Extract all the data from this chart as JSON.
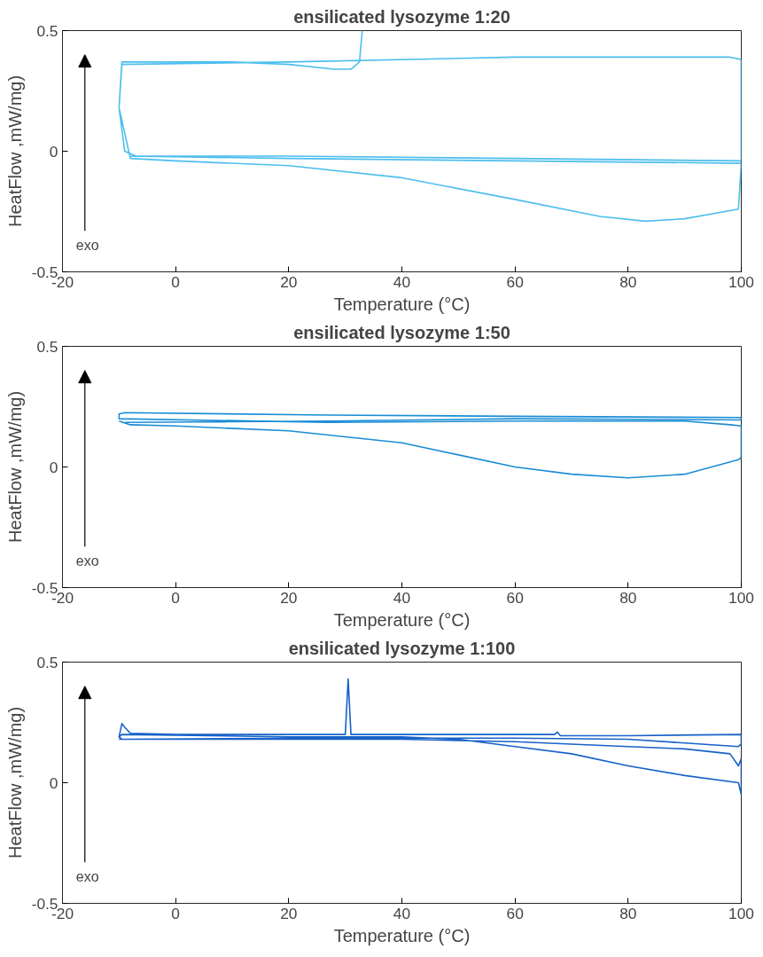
{
  "chart_data": [
    {
      "type": "line",
      "title": "ensilicated lysozyme 1:20",
      "xlabel": "Temperature (°C)",
      "ylabel": "HeatFlow ,mW/mg)",
      "xlim": [
        -20,
        100
      ],
      "ylim": [
        -0.5,
        0.5
      ],
      "xticks": [
        -20,
        0,
        20,
        40,
        60,
        80,
        100
      ],
      "yticks": [
        -0.5,
        0,
        0.5
      ],
      "grid": false,
      "annotations": [
        "exo"
      ],
      "series": [
        {
          "color": "#4dbeee",
          "x": [
            33,
            32.5,
            31,
            28,
            20,
            10,
            -9.5,
            -10,
            -9,
            -7,
            20,
            60,
            100,
            100,
            98,
            60,
            20,
            -9.5,
            -10,
            -8,
            0,
            20,
            40,
            60,
            75,
            83,
            90,
            99.5,
            100,
            60,
            20,
            -8
          ],
          "values": [
            0.5,
            0.37,
            0.34,
            0.34,
            0.36,
            0.37,
            0.37,
            0.18,
            0.0,
            -0.02,
            -0.02,
            -0.03,
            -0.04,
            0.38,
            0.39,
            0.39,
            0.37,
            0.36,
            0.18,
            -0.03,
            -0.04,
            -0.06,
            -0.11,
            -0.2,
            -0.27,
            -0.29,
            -0.28,
            -0.24,
            -0.05,
            -0.04,
            -0.03,
            -0.02
          ]
        }
      ]
    },
    {
      "type": "line",
      "title": "ensilicated lysozyme 1:50",
      "xlabel": "Temperature (°C)",
      "ylabel": "HeatFlow ,mW/mg)",
      "xlim": [
        -20,
        100
      ],
      "ylim": [
        -0.5,
        0.5
      ],
      "xticks": [
        -20,
        0,
        20,
        40,
        60,
        80,
        100
      ],
      "yticks": [
        -0.5,
        0,
        0.5
      ],
      "grid": false,
      "annotations": [
        "exo"
      ],
      "series": [
        {
          "color": "#1a8dd6",
          "x": [
            -10,
            -8,
            0,
            20,
            40,
            50,
            60,
            70,
            80,
            90,
            99.5,
            100,
            100,
            98,
            90,
            60,
            27,
            -10,
            -10,
            -9,
            27,
            60,
            100,
            100,
            60,
            27,
            -9
          ],
          "values": [
            0.19,
            0.175,
            0.17,
            0.15,
            0.1,
            0.05,
            0.0,
            -0.03,
            -0.045,
            -0.03,
            0.03,
            0.04,
            0.17,
            0.175,
            0.19,
            0.19,
            0.185,
            0.2,
            0.22,
            0.225,
            0.215,
            0.21,
            0.205,
            0.195,
            0.2,
            0.19,
            0.185
          ]
        }
      ]
    },
    {
      "type": "line",
      "title": "ensilicated lysozyme 1:100",
      "xlabel": "Temperature (°C)",
      "ylabel": "HeatFlow ,mW/mg)",
      "xlim": [
        -20,
        100
      ],
      "ylim": [
        -0.5,
        0.5
      ],
      "xticks": [
        -20,
        0,
        20,
        40,
        60,
        80,
        100
      ],
      "yticks": [
        -0.5,
        0,
        0.5
      ],
      "grid": false,
      "annotations": [
        "exo"
      ],
      "series": [
        {
          "color": "#1662c8",
          "x": [
            -10,
            -9.5,
            -9,
            -8,
            0,
            20,
            30,
            30.5,
            31,
            40,
            60,
            67,
            67.5,
            68,
            80,
            100,
            100,
            99.5,
            80,
            60,
            40,
            20,
            -9.5,
            -10,
            -9.5,
            20,
            40,
            50,
            60,
            70,
            80,
            90,
            99.5,
            100,
            100,
            99.5,
            98,
            90,
            80,
            60,
            40,
            20,
            -10
          ],
          "values": [
            0.19,
            0.245,
            0.23,
            0.205,
            0.2,
            0.2,
            0.2,
            0.43,
            0.2,
            0.2,
            0.2,
            0.2,
            0.21,
            0.195,
            0.195,
            0.2,
            0.16,
            0.15,
            0.18,
            0.185,
            0.185,
            0.185,
            0.18,
            0.19,
            0.2,
            0.19,
            0.19,
            0.18,
            0.15,
            0.12,
            0.07,
            0.03,
            0.0,
            -0.05,
            0.1,
            0.07,
            0.12,
            0.14,
            0.15,
            0.17,
            0.18,
            0.18,
            0.18
          ]
        }
      ]
    }
  ]
}
